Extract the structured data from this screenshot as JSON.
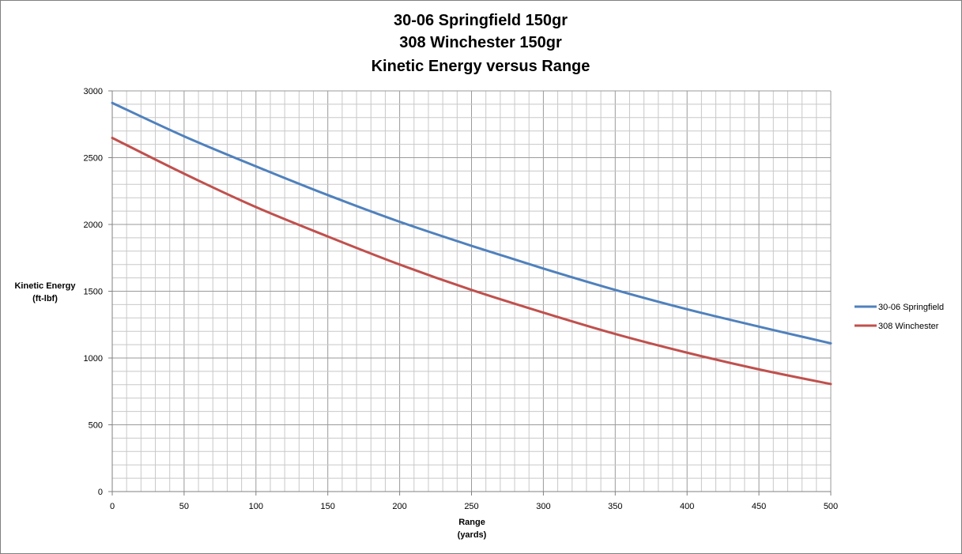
{
  "chart_data": {
    "type": "line",
    "title_lines": [
      "30-06 Springfield 150gr",
      "308 Winchester 150gr",
      "Kinetic Energy versus Range"
    ],
    "xlabel_lines": [
      "Range",
      "(yards)"
    ],
    "ylabel_lines": [
      "Kinetic Energy",
      "(ft-lbf)"
    ],
    "xlim": [
      0,
      500
    ],
    "ylim": [
      0,
      3000
    ],
    "x_ticks": [
      0,
      50,
      100,
      150,
      200,
      250,
      300,
      350,
      400,
      450,
      500
    ],
    "y_ticks": [
      0,
      500,
      1000,
      1500,
      2000,
      2500,
      3000
    ],
    "grid": true,
    "legend_position": "right",
    "x": [
      0,
      50,
      100,
      150,
      200,
      250,
      300,
      350,
      400,
      450,
      500
    ],
    "series": [
      {
        "name": "30-06 Springfield",
        "color": "#4F81BD",
        "values": [
          2910,
          2660,
          2435,
          2220,
          2020,
          1840,
          1670,
          1510,
          1365,
          1235,
          1110
        ]
      },
      {
        "name": "308 Winchester",
        "color": "#C0504D",
        "values": [
          2648,
          2380,
          2130,
          1910,
          1700,
          1510,
          1340,
          1180,
          1040,
          915,
          805
        ]
      }
    ]
  }
}
